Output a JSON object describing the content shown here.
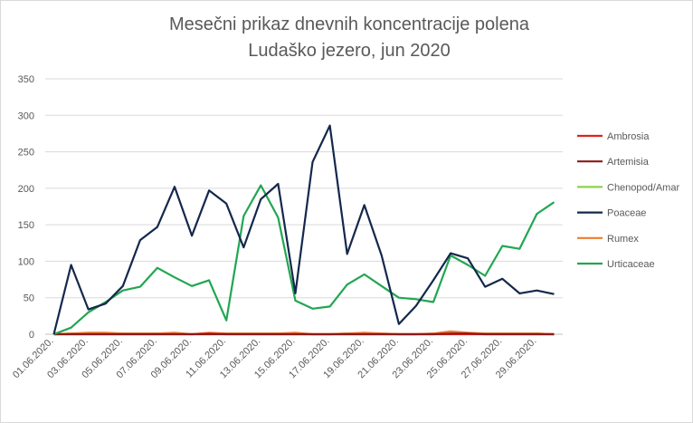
{
  "chart_data": {
    "type": "line",
    "title_line1": "Mesečni prikaz dnevnih koncentracije polena",
    "title_line2": "Ludaško jezero, jun 2020",
    "xlabel": "",
    "ylabel": "",
    "ylim": [
      0,
      350
    ],
    "yticks": [
      0,
      50,
      100,
      150,
      200,
      250,
      300,
      350
    ],
    "grid": true,
    "legend_position": "right",
    "x": [
      "01.06.2020.",
      "02.06.2020.",
      "03.06.2020.",
      "04.06.2020.",
      "05.06.2020.",
      "06.06.2020.",
      "07.06.2020.",
      "08.06.2020.",
      "09.06.2020.",
      "10.06.2020.",
      "11.06.2020.",
      "12.06.2020.",
      "13.06.2020.",
      "14.06.2020.",
      "15.06.2020.",
      "16.06.2020.",
      "17.06.2020.",
      "18.06.2020.",
      "19.06.2020.",
      "20.06.2020.",
      "21.06.2020.",
      "22.06.2020.",
      "23.06.2020.",
      "24.06.2020.",
      "25.06.2020.",
      "26.06.2020.",
      "27.06.2020.",
      "28.06.2020.",
      "29.06.2020.",
      "30.06.2020."
    ],
    "x_tick_labels": [
      "01.06.2020.",
      "03.06.2020.",
      "05.06.2020.",
      "07.06.2020.",
      "09.06.2020.",
      "11.06.2020.",
      "13.06.2020.",
      "15.06.2020.",
      "17.06.2020.",
      "19.06.2020.",
      "21.06.2020.",
      "23.06.2020.",
      "25.06.2020.",
      "27.06.2020.",
      "29.06.2020."
    ],
    "series": [
      {
        "name": "Ambrosia",
        "color": "#e02020",
        "values": [
          0,
          0,
          0,
          0,
          0,
          0,
          0,
          0,
          0,
          1,
          0,
          0,
          0,
          0,
          0,
          0,
          0,
          0,
          0,
          0,
          0,
          0,
          0,
          0,
          0,
          0,
          0,
          0,
          0,
          0
        ]
      },
      {
        "name": "Artemisia",
        "color": "#8b1a1a",
        "values": [
          0,
          0,
          0,
          0,
          0,
          0,
          0,
          0,
          0,
          0,
          0,
          0,
          0,
          0,
          0,
          0,
          0,
          0,
          0,
          0,
          0,
          0,
          0,
          1,
          1,
          0,
          0,
          0,
          0,
          0
        ]
      },
      {
        "name": "Chenopod/Amar",
        "color": "#8fd14f",
        "values": [
          0,
          1,
          1,
          1,
          1,
          1,
          1,
          1,
          0,
          0,
          1,
          1,
          1,
          1,
          1,
          0,
          0,
          1,
          1,
          1,
          0,
          0,
          1,
          1,
          1,
          1,
          1,
          1,
          1,
          0
        ]
      },
      {
        "name": "Poaceae",
        "color": "#14284b",
        "values": [
          0,
          95,
          34,
          42,
          66,
          129,
          147,
          202,
          135,
          197,
          179,
          119,
          185,
          206,
          56,
          236,
          286,
          110,
          177,
          108,
          14,
          39,
          74,
          111,
          104,
          65,
          76,
          56,
          60,
          55
        ]
      },
      {
        "name": "Rumex",
        "color": "#ed7d31",
        "values": [
          0,
          1,
          2,
          2,
          1,
          1,
          1,
          2,
          0,
          2,
          1,
          1,
          1,
          1,
          2,
          0,
          0,
          1,
          2,
          1,
          0,
          0,
          1,
          4,
          2,
          1,
          1,
          1,
          1,
          0
        ]
      },
      {
        "name": "Urticaceae",
        "color": "#21a652",
        "values": [
          0,
          9,
          30,
          44,
          60,
          65,
          91,
          78,
          66,
          74,
          19,
          162,
          204,
          160,
          46,
          35,
          38,
          68,
          82,
          66,
          50,
          48,
          44,
          108,
          95,
          80,
          121,
          117,
          165,
          181
        ]
      }
    ]
  }
}
